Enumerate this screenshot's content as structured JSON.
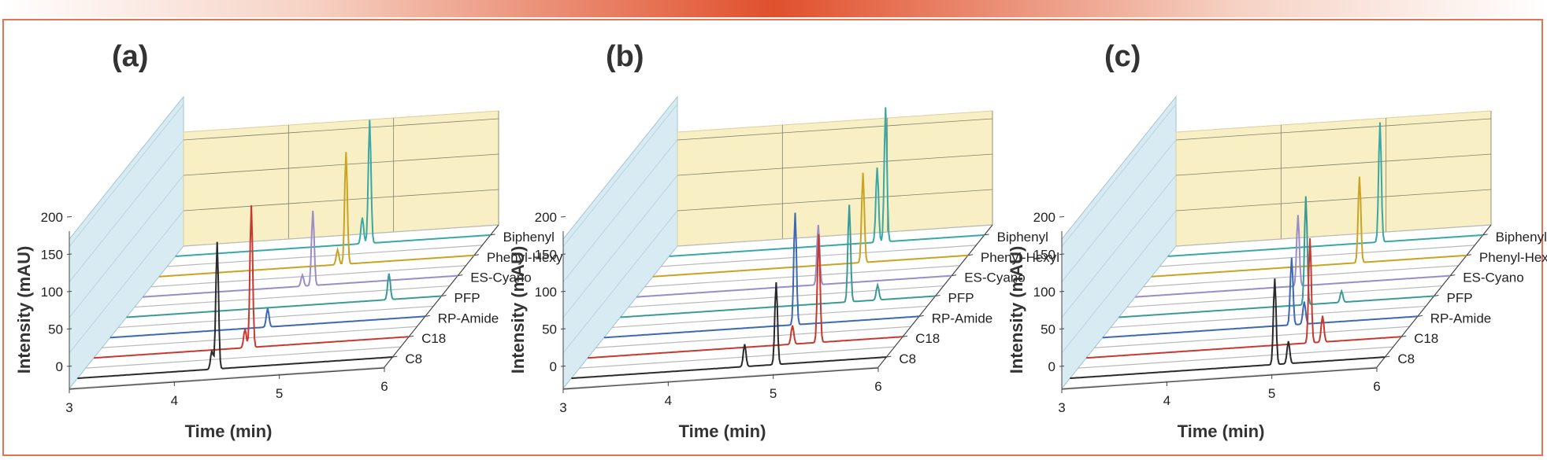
{
  "chart_data": [
    {
      "type": "line",
      "title": "(a)",
      "xlabel": "Time (min)",
      "ylabel": "Intensity (mAU)",
      "xlim": [
        3,
        6
      ],
      "ylim": [
        0,
        200
      ],
      "x_ticks": [
        "3",
        "4",
        "5",
        "6"
      ],
      "y_ticks": [
        "0",
        "50",
        "100",
        "150",
        "200"
      ],
      "series": [
        {
          "name": "C8",
          "color": "#2a2a2a",
          "peaks": [
            {
              "x": 4.28,
              "y": 25
            },
            {
              "x": 4.33,
              "y": 170
            }
          ]
        },
        {
          "name": "C18",
          "color": "#c8382e",
          "peaks": [
            {
              "x": 4.44,
              "y": 25
            },
            {
              "x": 4.5,
              "y": 190
            }
          ]
        },
        {
          "name": "RP-Amide",
          "color": "#3d68b3",
          "peaks": [
            {
              "x": 4.5,
              "y": 25
            }
          ]
        },
        {
          "name": "PFP",
          "color": "#3a9a96",
          "peaks": [
            {
              "x": 5.5,
              "y": 35
            }
          ]
        },
        {
          "name": "ES-Cyano",
          "color": "#9a8cc6",
          "peaks": [
            {
              "x": 4.52,
              "y": 15
            },
            {
              "x": 4.62,
              "y": 100
            }
          ]
        },
        {
          "name": "Phenyl-Hexyl",
          "color": "#c9a321",
          "peaks": [
            {
              "x": 4.7,
              "y": 20
            },
            {
              "x": 4.78,
              "y": 150
            }
          ]
        },
        {
          "name": "Biphenyl",
          "color": "#3aa7a7",
          "peaks": [
            {
              "x": 4.78,
              "y": 35
            },
            {
              "x": 4.85,
              "y": 165
            }
          ]
        }
      ]
    },
    {
      "type": "line",
      "title": "(b)",
      "xlabel": "Time (min)",
      "ylabel": "Intensity (mAU)",
      "xlim": [
        3,
        6
      ],
      "ylim": [
        0,
        200
      ],
      "x_ticks": [
        "3",
        "4",
        "5",
        "6"
      ],
      "y_ticks": [
        "0",
        "50",
        "100",
        "150",
        "200"
      ],
      "series": [
        {
          "name": "C8",
          "color": "#2a2a2a",
          "peaks": [
            {
              "x": 4.65,
              "y": 30
            },
            {
              "x": 4.95,
              "y": 110
            }
          ]
        },
        {
          "name": "C18",
          "color": "#c8382e",
          "peaks": [
            {
              "x": 4.95,
              "y": 25
            },
            {
              "x": 5.2,
              "y": 145
            }
          ]
        },
        {
          "name": "RP-Amide",
          "color": "#3d68b3",
          "peaks": [
            {
              "x": 4.82,
              "y": 150
            }
          ]
        },
        {
          "name": "PFP",
          "color": "#3a9a96",
          "peaks": [
            {
              "x": 5.18,
              "y": 130
            },
            {
              "x": 5.45,
              "y": 20
            }
          ]
        },
        {
          "name": "ES-Cyano",
          "color": "#9a8cc6",
          "peaks": [
            {
              "x": 4.73,
              "y": 80
            }
          ]
        },
        {
          "name": "Phenyl-Hexyl",
          "color": "#c9a321",
          "peaks": [
            {
              "x": 5.0,
              "y": 120
            }
          ]
        },
        {
          "name": "Biphenyl",
          "color": "#3aa7a7",
          "peaks": [
            {
              "x": 4.98,
              "y": 100
            },
            {
              "x": 5.06,
              "y": 180
            }
          ]
        }
      ]
    },
    {
      "type": "line",
      "title": "(c)",
      "xlabel": "Time (min)",
      "ylabel": "Intensity (mAU)",
      "xlim": [
        3,
        6
      ],
      "ylim": [
        0,
        200
      ],
      "x_ticks": [
        "3",
        "4",
        "5",
        "6"
      ],
      "y_ticks": [
        "0",
        "50",
        "100",
        "150",
        "200"
      ],
      "series": [
        {
          "name": "C8",
          "color": "#2a2a2a",
          "peaks": [
            {
              "x": 4.95,
              "y": 115
            },
            {
              "x": 5.08,
              "y": 30
            }
          ]
        },
        {
          "name": "C18",
          "color": "#c8382e",
          "peaks": [
            {
              "x": 5.13,
              "y": 140
            },
            {
              "x": 5.25,
              "y": 35
            }
          ]
        },
        {
          "name": "RP-Amide",
          "color": "#3d68b3",
          "peaks": [
            {
              "x": 4.8,
              "y": 90
            },
            {
              "x": 4.92,
              "y": 30
            }
          ]
        },
        {
          "name": "PFP",
          "color": "#3a9a96",
          "peaks": [
            {
              "x": 4.78,
              "y": 145
            },
            {
              "x": 5.12,
              "y": 15
            }
          ]
        },
        {
          "name": "ES-Cyano",
          "color": "#9a8cc6",
          "peaks": [
            {
              "x": 4.55,
              "y": 95
            }
          ]
        },
        {
          "name": "Phenyl-Hexyl",
          "color": "#c9a321",
          "peaks": [
            {
              "x": 4.98,
              "y": 115
            }
          ]
        },
        {
          "name": "Biphenyl",
          "color": "#3aa7a7",
          "peaks": [
            {
              "x": 5.02,
              "y": 160
            }
          ]
        }
      ]
    }
  ],
  "colors": {
    "frame": "#e57351",
    "back_wall": "#f8f0c4",
    "side_wall": "#d8ebf3",
    "floor_line": "#b8b8b8",
    "grid": "#7f7f6a"
  }
}
